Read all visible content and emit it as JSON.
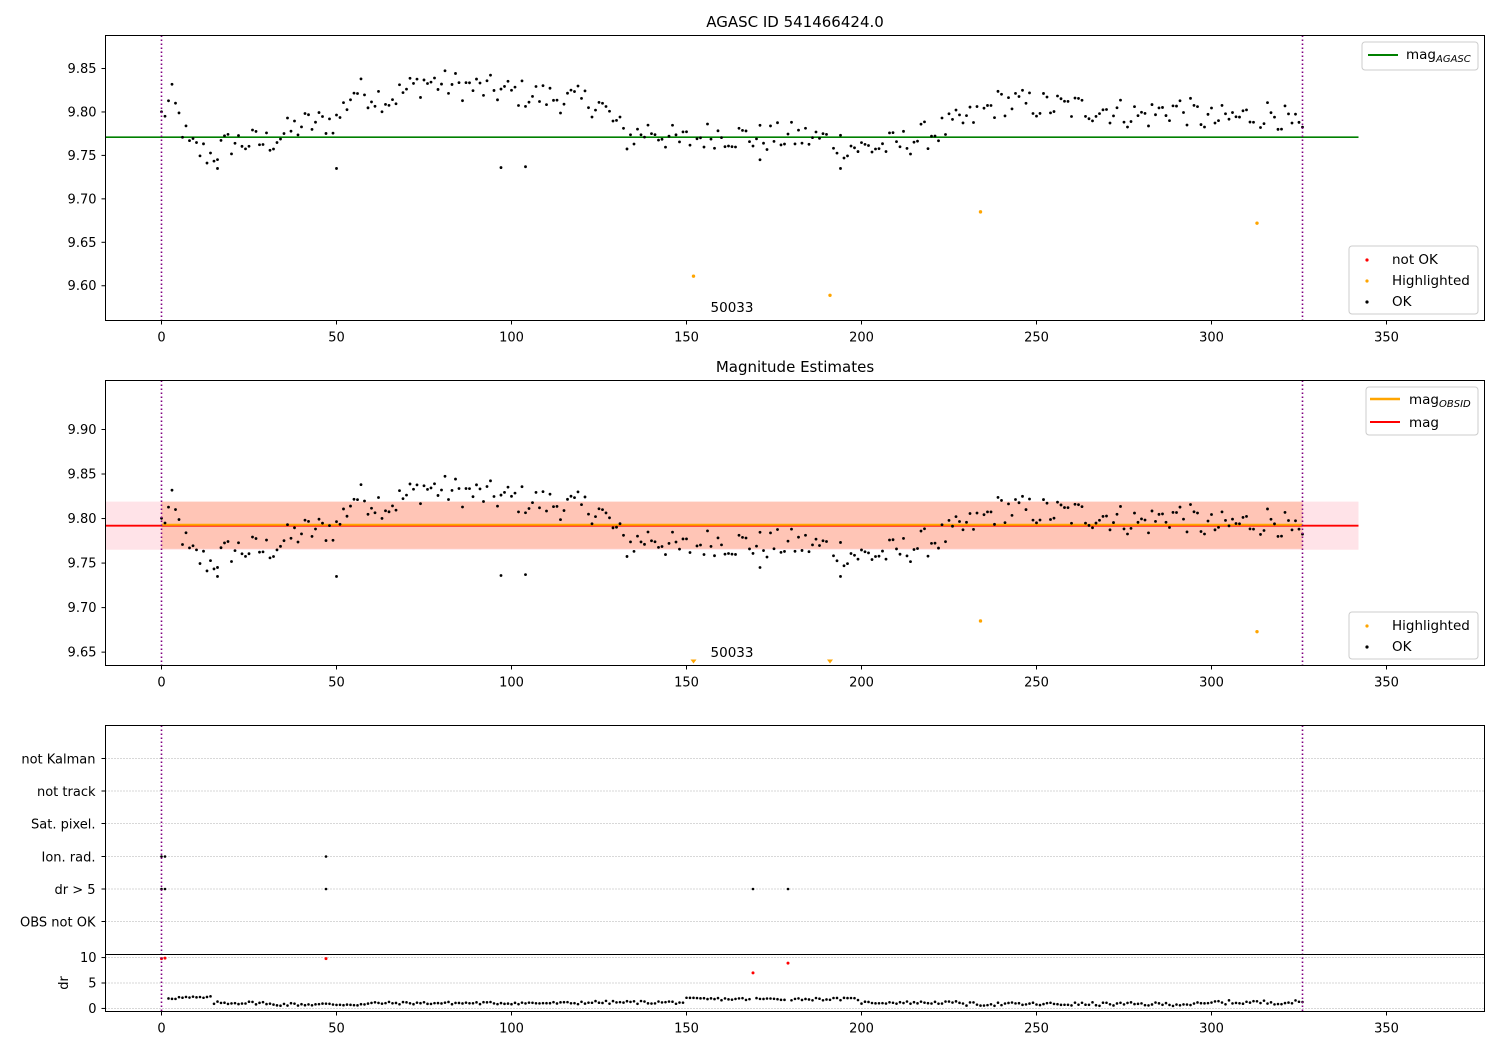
{
  "chart_data": [
    {
      "type": "scatter",
      "panel": "agasc",
      "title": "AGASC ID 541466424.0",
      "xlim": [
        -16,
        378
      ],
      "ylim": [
        9.56,
        9.888
      ],
      "xticks": [
        0,
        50,
        100,
        150,
        200,
        250,
        300,
        350
      ],
      "xtick_labels": [
        "0",
        "50",
        "100",
        "150",
        "200",
        "250",
        "300",
        "350"
      ],
      "yticks": [
        9.6,
        9.65,
        9.7,
        9.75,
        9.8,
        9.85
      ],
      "ytick_labels": [
        "9.60",
        "9.65",
        "9.70",
        "9.75",
        "9.80",
        "9.85"
      ],
      "vlines": [
        0,
        326
      ],
      "hline": {
        "name": "mag_AGASC",
        "label_main": "mag",
        "label_sub": "AGASC",
        "y": 9.771,
        "x": [
          -16,
          342
        ],
        "color": "#008000"
      },
      "highlighted": [
        {
          "x": 152,
          "y": 9.611
        },
        {
          "x": 191,
          "y": 9.589
        },
        {
          "x": 234,
          "y": 9.685
        },
        {
          "x": 313,
          "y": 9.672
        }
      ],
      "annotation": {
        "text": "50033",
        "x": 172,
        "y": 9.574
      },
      "legend": {
        "placement": "top-right",
        "entries": [
          "mag_AGASC"
        ]
      },
      "legend2": {
        "placement": "bottom-right",
        "entries": [
          "not OK",
          "Highlighted",
          "OK"
        ]
      },
      "colors": {
        "ok": "#000000",
        "not_ok": "#ff0000",
        "highlighted": "#ffa500"
      }
    },
    {
      "type": "scatter",
      "panel": "estimates",
      "title": "Magnitude Estimates",
      "xlim": [
        -16,
        378
      ],
      "ylim": [
        9.635,
        9.955
      ],
      "xticks": [
        0,
        50,
        100,
        150,
        200,
        250,
        300,
        350
      ],
      "xtick_labels": [
        "0",
        "50",
        "100",
        "150",
        "200",
        "250",
        "300",
        "350"
      ],
      "yticks": [
        9.65,
        9.7,
        9.75,
        9.8,
        9.85,
        9.9
      ],
      "ytick_labels": [
        "9.65",
        "9.70",
        "9.75",
        "9.80",
        "9.85",
        "9.90"
      ],
      "vlines": [
        0,
        326
      ],
      "mag_line": {
        "label": "mag",
        "y": 9.792,
        "x": [
          -16,
          342
        ],
        "color": "#ff0000"
      },
      "mag_band": {
        "y": [
          9.765,
          9.819
        ],
        "color": "#ffc0cb"
      },
      "mag_obsid_line": {
        "label_main": "mag",
        "label_sub": "OBSID",
        "y": 9.793,
        "x": [
          0,
          326
        ],
        "color": "#ffa500"
      },
      "mag_obsid_band": {
        "y": [
          9.766,
          9.819
        ],
        "color": "#ffa07a"
      },
      "highlighted": [
        {
          "x": 234,
          "y": 9.685
        },
        {
          "x": 313,
          "y": 9.673
        }
      ],
      "highlighted_offscale": [
        {
          "x": 152
        },
        {
          "x": 191
        }
      ],
      "annotation": {
        "text": "50033",
        "x": 172,
        "y": 9.644
      },
      "legend": {
        "placement": "top-right",
        "entries": [
          "mag_OBSID",
          "mag"
        ]
      },
      "legend2": {
        "placement": "bottom-right",
        "entries": [
          "Highlighted",
          "OK"
        ]
      }
    },
    {
      "type": "scatter",
      "panel": "flags",
      "xlim": [
        -16,
        378
      ],
      "categories": [
        "not Kalman",
        "not track",
        "Sat. pixel.",
        "Ion. rad.",
        "dr > 5",
        "OBS not OK"
      ],
      "flag_points": {
        "Ion. rad.": [
          0,
          1,
          47
        ],
        "dr > 5": [
          0,
          1,
          47,
          169,
          179
        ]
      },
      "vlines": [
        0,
        326
      ]
    },
    {
      "type": "scatter",
      "panel": "dr",
      "ylabel": "dr",
      "xlim": [
        -16,
        378
      ],
      "ylim": [
        -0.6,
        10.6
      ],
      "xticks": [
        0,
        50,
        100,
        150,
        200,
        250,
        300,
        350
      ],
      "xtick_labels": [
        "0",
        "50",
        "100",
        "150",
        "200",
        "250",
        "300",
        "350"
      ],
      "yticks": [
        0,
        5,
        10
      ],
      "ytick_labels": [
        "0",
        "5",
        "10"
      ],
      "outliers": [
        {
          "x": 0,
          "y": 9.8
        },
        {
          "x": 1,
          "y": 9.9
        },
        {
          "x": 47,
          "y": 9.8
        },
        {
          "x": 169,
          "y": 7.0
        },
        {
          "x": 179,
          "y": 8.9
        }
      ],
      "vlines": [
        0,
        326
      ]
    }
  ]
}
